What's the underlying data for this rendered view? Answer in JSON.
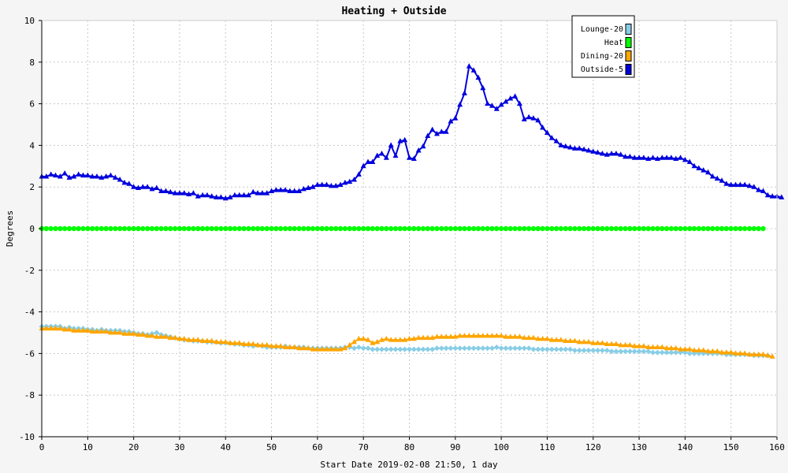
{
  "chart_data": {
    "type": "line",
    "title": "Heating + Outside",
    "xlabel": "Start Date 2019-02-08 21:50, 1 day",
    "ylabel": "Degrees",
    "xlim": [
      0,
      160
    ],
    "ylim": [
      -10,
      10
    ],
    "x_ticks": [
      0,
      10,
      20,
      30,
      40,
      50,
      60,
      70,
      80,
      90,
      100,
      110,
      120,
      130,
      140,
      150,
      160
    ],
    "y_ticks": [
      -10,
      -8,
      -6,
      -4,
      -2,
      0,
      2,
      4,
      6,
      8,
      10
    ],
    "grid": true,
    "legend_position": "top-right",
    "colors": {
      "background": "#f5f5f5",
      "plot_background": "#ffffff",
      "grid": "#c8c8c8",
      "axis": "#000000"
    },
    "series": [
      {
        "name": "Lounge-20",
        "color": "#87cde6",
        "marker": "diamond",
        "x_start": 0,
        "x_step": 1,
        "values": [
          -4.7,
          -4.7,
          -4.7,
          -4.7,
          -4.7,
          -4.8,
          -4.75,
          -4.8,
          -4.8,
          -4.8,
          -4.85,
          -4.85,
          -4.9,
          -4.85,
          -4.9,
          -4.9,
          -4.9,
          -4.9,
          -4.95,
          -4.95,
          -5.0,
          -5.05,
          -5.05,
          -5.1,
          -5.05,
          -5.0,
          -5.1,
          -5.15,
          -5.2,
          -5.25,
          -5.3,
          -5.35,
          -5.35,
          -5.4,
          -5.4,
          -5.4,
          -5.45,
          -5.45,
          -5.45,
          -5.5,
          -5.5,
          -5.5,
          -5.55,
          -5.55,
          -5.6,
          -5.6,
          -5.65,
          -5.6,
          -5.65,
          -5.7,
          -5.7,
          -5.7,
          -5.7,
          -5.65,
          -5.7,
          -5.7,
          -5.7,
          -5.7,
          -5.75,
          -5.75,
          -5.75,
          -5.75,
          -5.75,
          -5.75,
          -5.75,
          -5.75,
          -5.7,
          -5.7,
          -5.75,
          -5.7,
          -5.75,
          -5.75,
          -5.8,
          -5.8,
          -5.8,
          -5.8,
          -5.8,
          -5.8,
          -5.8,
          -5.8,
          -5.8,
          -5.8,
          -5.8,
          -5.8,
          -5.8,
          -5.8,
          -5.75,
          -5.75,
          -5.75,
          -5.75,
          -5.75,
          -5.75,
          -5.75,
          -5.75,
          -5.75,
          -5.75,
          -5.75,
          -5.75,
          -5.75,
          -5.7,
          -5.75,
          -5.75,
          -5.75,
          -5.75,
          -5.75,
          -5.75,
          -5.75,
          -5.8,
          -5.8,
          -5.8,
          -5.8,
          -5.8,
          -5.8,
          -5.8,
          -5.8,
          -5.8,
          -5.85,
          -5.85,
          -5.85,
          -5.85,
          -5.85,
          -5.85,
          -5.85,
          -5.85,
          -5.9,
          -5.9,
          -5.9,
          -5.9,
          -5.9,
          -5.9,
          -5.9,
          -5.9,
          -5.9,
          -5.95,
          -5.95,
          -5.95,
          -5.95,
          -5.95,
          -5.95,
          -5.95,
          -5.95,
          -6.0,
          -6.0,
          -6.0,
          -6.0,
          -6.0,
          -6.0,
          -6.0,
          -6.0,
          -6.05,
          -6.05,
          -6.05,
          -6.05,
          -6.05,
          -6.05,
          -6.1,
          -6.1,
          -6.1,
          -6.1
        ]
      },
      {
        "name": "Heat",
        "color": "#00ff00",
        "marker": "circle",
        "x_start": 0,
        "x_step": 1,
        "values": [
          0,
          0,
          0,
          0,
          0,
          0,
          0,
          0,
          0,
          0,
          0,
          0,
          0,
          0,
          0,
          0,
          0,
          0,
          0,
          0,
          0,
          0,
          0,
          0,
          0,
          0,
          0,
          0,
          0,
          0,
          0,
          0,
          0,
          0,
          0,
          0,
          0,
          0,
          0,
          0,
          0,
          0,
          0,
          0,
          0,
          0,
          0,
          0,
          0,
          0,
          0,
          0,
          0,
          0,
          0,
          0,
          0,
          0,
          0,
          0,
          0,
          0,
          0,
          0,
          0,
          0,
          0,
          0,
          0,
          0,
          0,
          0,
          0,
          0,
          0,
          0,
          0,
          0,
          0,
          0,
          0,
          0,
          0,
          0,
          0,
          0,
          0,
          0,
          0,
          0,
          0,
          0,
          0,
          0,
          0,
          0,
          0,
          0,
          0,
          0,
          0,
          0,
          0,
          0,
          0,
          0,
          0,
          0,
          0,
          0,
          0,
          0,
          0,
          0,
          0,
          0,
          0,
          0,
          0,
          0,
          0,
          0,
          0,
          0,
          0,
          0,
          0,
          0,
          0,
          0,
          0,
          0,
          0,
          0,
          0,
          0,
          0,
          0,
          0,
          0,
          0,
          0,
          0,
          0,
          0,
          0,
          0,
          0,
          0,
          0,
          0,
          0,
          0,
          0,
          0,
          0,
          0,
          0
        ]
      },
      {
        "name": "Dining-20",
        "color": "#ffa500",
        "marker": "triangle",
        "x_start": 0,
        "x_step": 1,
        "values": [
          -4.8,
          -4.8,
          -4.8,
          -4.8,
          -4.8,
          -4.85,
          -4.85,
          -4.9,
          -4.9,
          -4.9,
          -4.9,
          -4.95,
          -4.95,
          -4.95,
          -4.95,
          -5.0,
          -5.0,
          -5.0,
          -5.05,
          -5.05,
          -5.05,
          -5.1,
          -5.1,
          -5.15,
          -5.15,
          -5.2,
          -5.2,
          -5.2,
          -5.25,
          -5.25,
          -5.3,
          -5.3,
          -5.35,
          -5.35,
          -5.35,
          -5.4,
          -5.4,
          -5.4,
          -5.45,
          -5.45,
          -5.45,
          -5.5,
          -5.5,
          -5.5,
          -5.55,
          -5.55,
          -5.55,
          -5.6,
          -5.6,
          -5.6,
          -5.65,
          -5.65,
          -5.65,
          -5.7,
          -5.7,
          -5.7,
          -5.75,
          -5.75,
          -5.75,
          -5.8,
          -5.8,
          -5.8,
          -5.8,
          -5.8,
          -5.8,
          -5.8,
          -5.75,
          -5.6,
          -5.45,
          -5.3,
          -5.3,
          -5.35,
          -5.5,
          -5.45,
          -5.35,
          -5.3,
          -5.35,
          -5.35,
          -5.35,
          -5.35,
          -5.3,
          -5.3,
          -5.25,
          -5.25,
          -5.25,
          -5.25,
          -5.2,
          -5.2,
          -5.2,
          -5.2,
          -5.2,
          -5.15,
          -5.15,
          -5.15,
          -5.15,
          -5.15,
          -5.15,
          -5.15,
          -5.15,
          -5.15,
          -5.15,
          -5.2,
          -5.2,
          -5.2,
          -5.2,
          -5.25,
          -5.25,
          -5.25,
          -5.3,
          -5.3,
          -5.3,
          -5.35,
          -5.35,
          -5.35,
          -5.4,
          -5.4,
          -5.4,
          -5.45,
          -5.45,
          -5.45,
          -5.5,
          -5.5,
          -5.5,
          -5.55,
          -5.55,
          -5.55,
          -5.6,
          -5.6,
          -5.6,
          -5.65,
          -5.65,
          -5.65,
          -5.7,
          -5.7,
          -5.7,
          -5.7,
          -5.75,
          -5.75,
          -5.75,
          -5.8,
          -5.8,
          -5.8,
          -5.85,
          -5.85,
          -5.85,
          -5.9,
          -5.9,
          -5.9,
          -5.95,
          -5.95,
          -5.95,
          -6.0,
          -6.0,
          -6.0,
          -6.05,
          -6.05,
          -6.05,
          -6.05,
          -6.1,
          -6.15
        ]
      },
      {
        "name": "Outside-5",
        "color": "#0000dd",
        "marker": "triangle",
        "x_start": 0,
        "x_step": 1,
        "values": [
          2.5,
          2.5,
          2.6,
          2.55,
          2.5,
          2.65,
          2.45,
          2.5,
          2.6,
          2.55,
          2.55,
          2.5,
          2.5,
          2.45,
          2.5,
          2.55,
          2.45,
          2.35,
          2.2,
          2.15,
          2.0,
          1.95,
          2.0,
          2.0,
          1.9,
          1.95,
          1.8,
          1.8,
          1.75,
          1.7,
          1.7,
          1.7,
          1.65,
          1.7,
          1.55,
          1.6,
          1.6,
          1.55,
          1.5,
          1.5,
          1.45,
          1.5,
          1.6,
          1.6,
          1.6,
          1.6,
          1.75,
          1.7,
          1.7,
          1.7,
          1.8,
          1.85,
          1.85,
          1.85,
          1.8,
          1.8,
          1.8,
          1.9,
          1.95,
          2.0,
          2.1,
          2.1,
          2.1,
          2.05,
          2.05,
          2.1,
          2.2,
          2.25,
          2.35,
          2.6,
          3.0,
          3.2,
          3.2,
          3.5,
          3.6,
          3.4,
          4.0,
          3.5,
          4.2,
          4.25,
          3.4,
          3.35,
          3.75,
          3.95,
          4.45,
          4.75,
          4.55,
          4.65,
          4.65,
          5.15,
          5.3,
          5.95,
          6.5,
          7.8,
          7.6,
          7.25,
          6.75,
          6.0,
          5.9,
          5.75,
          5.95,
          6.1,
          6.25,
          6.35,
          6.0,
          5.25,
          5.35,
          5.3,
          5.2,
          4.85,
          4.6,
          4.35,
          4.2,
          4.0,
          3.95,
          3.9,
          3.85,
          3.85,
          3.8,
          3.75,
          3.7,
          3.65,
          3.6,
          3.55,
          3.6,
          3.6,
          3.55,
          3.45,
          3.45,
          3.4,
          3.4,
          3.4,
          3.35,
          3.4,
          3.35,
          3.4,
          3.4,
          3.4,
          3.35,
          3.4,
          3.3,
          3.2,
          3.0,
          2.9,
          2.8,
          2.7,
          2.5,
          2.4,
          2.3,
          2.15,
          2.1,
          2.1,
          2.1,
          2.1,
          2.05,
          2.0,
          1.85,
          1.8,
          1.6,
          1.55,
          1.55,
          1.5
        ]
      }
    ]
  }
}
